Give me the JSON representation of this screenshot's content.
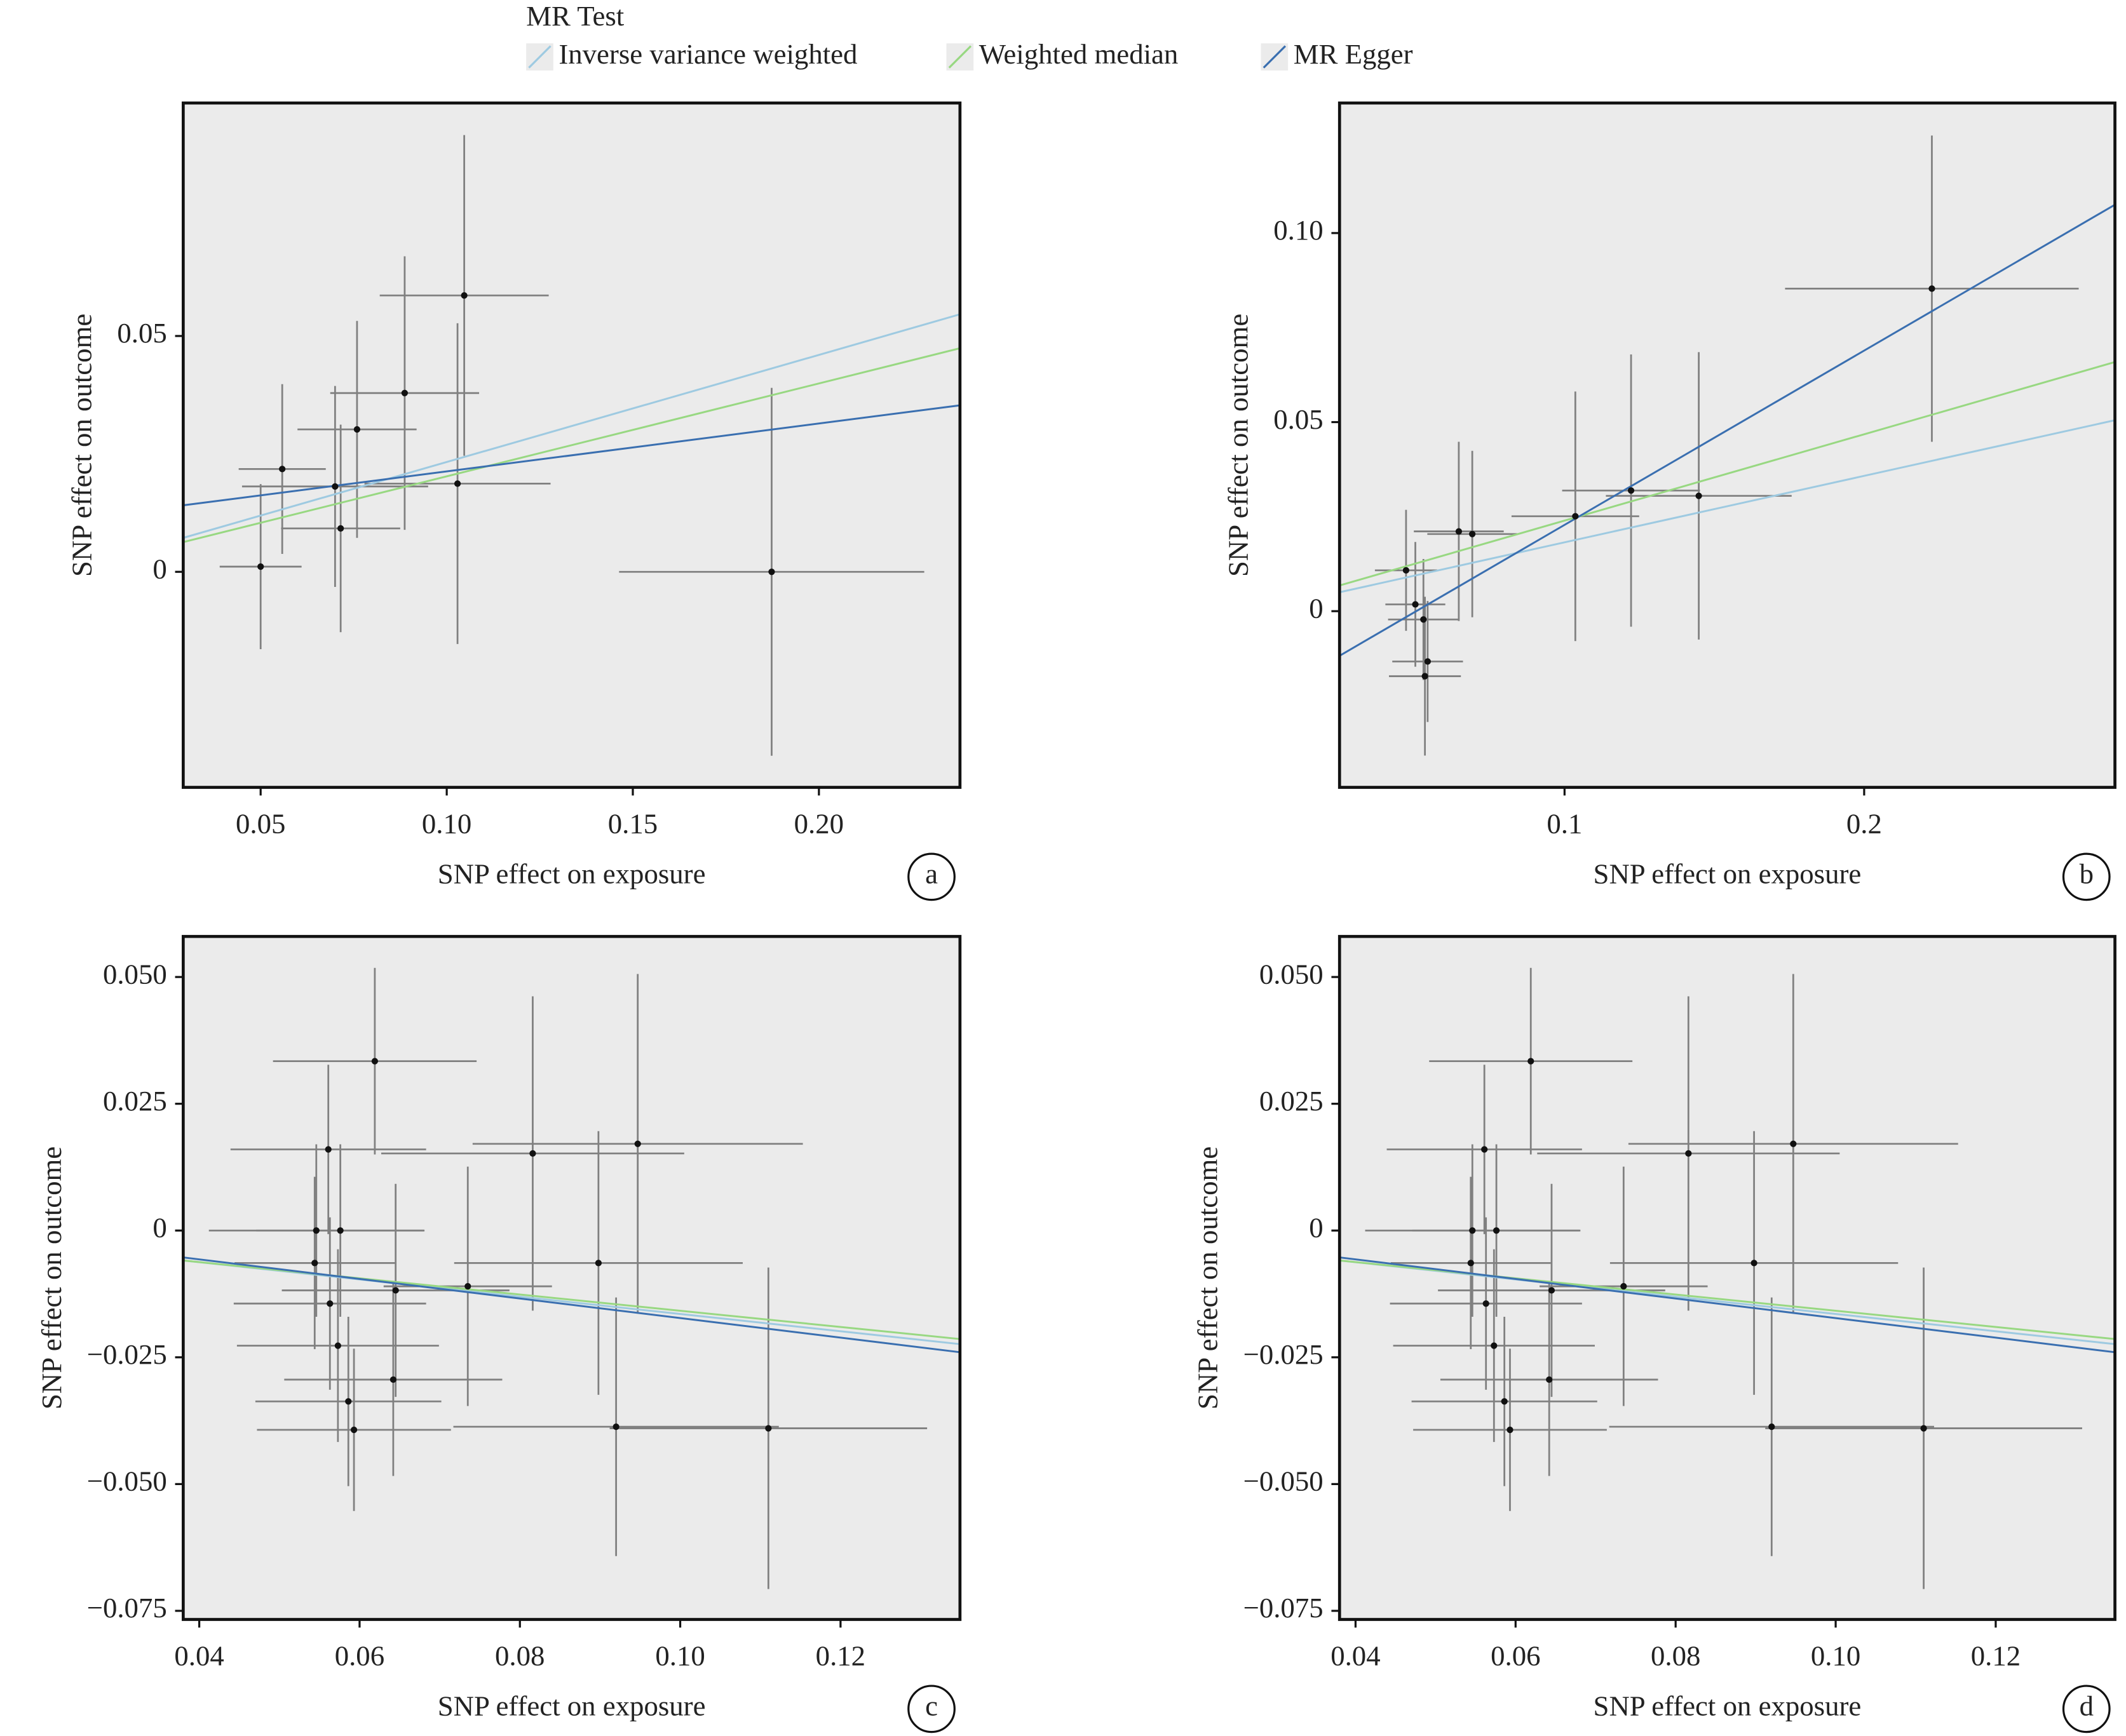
{
  "legend": {
    "title": "MR Test",
    "entries": [
      {
        "name": "Inverse variance weighted",
        "color": "#9ecae1"
      },
      {
        "name": "Weighted median",
        "color": "#98d882"
      },
      {
        "name": "MR Egger",
        "color": "#3a6fb0"
      }
    ]
  },
  "chart_data": [
    {
      "type": "scatter",
      "panel_label": "a",
      "x_label": "SNP effect on exposure",
      "y_label": "SNP effect on outcome",
      "xlim": [
        0.0292,
        0.2379
      ],
      "ylim": [
        -0.0457,
        0.0994
      ],
      "xticks": [
        0.05,
        {
          "value": 0.1,
          "label": "0.10"
        },
        0.15,
        {
          "value": 0.2,
          "label": "0.20"
        }
      ],
      "yticks": [
        0,
        0.05
      ],
      "x": [
        0.05,
        0.0558,
        0.07,
        0.0715,
        0.0759,
        0.0887,
        0.1029,
        0.1047,
        0.1873
      ],
      "y": [
        0.0011,
        0.0218,
        0.0181,
        0.0092,
        0.0302,
        0.0379,
        0.0187,
        0.0586,
        0
      ],
      "x_err": [
        0.011,
        0.0117,
        0.025,
        0.016,
        0.016,
        0.02,
        0.025,
        0.0227,
        0.041
      ],
      "y_err": [
        0.0175,
        0.018,
        0.0213,
        0.022,
        0.023,
        0.029,
        0.034,
        0.034,
        0.039
      ],
      "lines": [
        [
          0.0072,
          0.0546
        ],
        [
          0.0063,
          0.0474
        ],
        [
          0.0141,
          0.0353
        ]
      ]
    },
    {
      "type": "scatter",
      "panel_label": "b",
      "x_label": "SNP effect on exposure",
      "y_label": "SNP effect on outcome",
      "xlim": [
        0.0249,
        0.2837
      ],
      "ylim": [
        -0.0466,
        0.1344
      ],
      "xticks": [
        0.1,
        0.2
      ],
      "yticks": [
        0,
        0.05,
        {
          "value": 0.1,
          "label": "0.10"
        }
      ],
      "x": [
        0.0471,
        0.0502,
        0.0529,
        0.0543,
        0.0534,
        0.0647,
        0.0692,
        0.1036,
        0.1222,
        0.1448,
        0.2226
      ],
      "y": [
        0.0108,
        0.0018,
        -0.0022,
        -0.0133,
        -0.0172,
        0.0211,
        0.0204,
        0.0251,
        0.0319,
        0.0305,
        0.0853
      ],
      "x_err": [
        0.0104,
        0.01,
        0.0118,
        0.0118,
        0.012,
        0.015,
        0.015,
        0.0213,
        0.023,
        0.031,
        0.049
      ],
      "y_err": [
        0.016,
        0.0165,
        0.016,
        0.016,
        0.021,
        0.0237,
        0.022,
        0.033,
        0.036,
        0.038,
        0.0405
      ],
      "lines": [
        [
          0.005,
          0.0505
        ],
        [
          0.0068,
          0.0659
        ],
        [
          -0.0118,
          0.1075
        ]
      ]
    },
    {
      "type": "scatter",
      "panel_label": "c",
      "x_label": "SNP effect on exposure",
      "y_label": "SNP effect on outcome",
      "xlim": [
        0.038,
        0.1349
      ],
      "ylim": [
        -0.0767,
        0.058
      ],
      "xticks": [
        0.04,
        0.06,
        0.08,
        {
          "value": 0.1,
          "label": "0.10"
        },
        0.12
      ],
      "yticks": [
        {
          "value": -0.075,
          "label": "−0.075"
        },
        {
          "value": -0.05,
          "label": "−0.050"
        },
        {
          "value": -0.025,
          "label": "−0.025"
        },
        0,
        {
          "value": 0.025,
          "label": "0.025"
        },
        {
          "value": 0.05,
          "label": "0.050"
        }
      ],
      "x": [
        0.0546,
        0.0576,
        0.0544,
        0.0561,
        0.0619,
        0.0563,
        0.0573,
        0.0586,
        0.0593,
        0.0642,
        0.0645,
        0.0735,
        0.0816,
        0.0898,
        0.0947,
        0.092,
        0.111
      ],
      "y": [
        0,
        0,
        -0.0064,
        0.016,
        0.0334,
        -0.0144,
        -0.0227,
        -0.0337,
        -0.0393,
        -0.0294,
        -0.0118,
        -0.011,
        0.0152,
        -0.0064,
        0.0171,
        -0.0387,
        -0.039
      ],
      "x_err": [
        0.0134,
        0.0105,
        0.01,
        0.0122,
        0.0127,
        0.012,
        0.0126,
        0.0116,
        0.0121,
        0.0136,
        0.0142,
        0.0105,
        0.0189,
        0.018,
        0.0206,
        0.0203,
        0.0198
      ],
      "y_err": [
        0.017,
        0.017,
        0.017,
        0.0167,
        0.0184,
        0.017,
        0.019,
        0.0167,
        0.016,
        0.019,
        0.021,
        0.0236,
        0.031,
        0.026,
        0.0335,
        0.0255,
        0.0317
      ],
      "lines": [
        [
          -0.0059,
          -0.0224
        ],
        [
          -0.0059,
          -0.0214
        ],
        [
          -0.0053,
          -0.024
        ]
      ]
    },
    {
      "type": "scatter",
      "panel_label": "d",
      "x_label": "SNP effect on exposure",
      "y_label": "SNP effect on outcome",
      "xlim": [
        0.038,
        0.1349
      ],
      "ylim": [
        -0.0767,
        0.058
      ],
      "xticks": [
        0.04,
        0.06,
        0.08,
        {
          "value": 0.1,
          "label": "0.10"
        },
        0.12
      ],
      "yticks": [
        {
          "value": -0.075,
          "label": "−0.075"
        },
        {
          "value": -0.05,
          "label": "−0.050"
        },
        {
          "value": -0.025,
          "label": "−0.025"
        },
        0,
        {
          "value": 0.025,
          "label": "0.025"
        },
        {
          "value": 0.05,
          "label": "0.050"
        }
      ],
      "x": [
        0.0546,
        0.0576,
        0.0544,
        0.0561,
        0.0619,
        0.0563,
        0.0573,
        0.0586,
        0.0593,
        0.0642,
        0.0645,
        0.0735,
        0.0816,
        0.0898,
        0.0947,
        0.092,
        0.111
      ],
      "y": [
        0,
        0,
        -0.0064,
        0.016,
        0.0334,
        -0.0144,
        -0.0227,
        -0.0337,
        -0.0393,
        -0.0294,
        -0.0118,
        -0.011,
        0.0152,
        -0.0064,
        0.0171,
        -0.0387,
        -0.039
      ],
      "x_err": [
        0.0134,
        0.0105,
        0.01,
        0.0122,
        0.0127,
        0.012,
        0.0126,
        0.0116,
        0.0121,
        0.0136,
        0.0142,
        0.0105,
        0.0189,
        0.018,
        0.0206,
        0.0203,
        0.0198
      ],
      "y_err": [
        0.017,
        0.017,
        0.017,
        0.0167,
        0.0184,
        0.017,
        0.019,
        0.0167,
        0.016,
        0.019,
        0.021,
        0.0236,
        0.031,
        0.026,
        0.0335,
        0.0255,
        0.0317
      ],
      "lines": [
        [
          -0.0059,
          -0.0224
        ],
        [
          -0.0059,
          -0.0214
        ],
        [
          -0.0053,
          -0.024
        ]
      ]
    }
  ]
}
